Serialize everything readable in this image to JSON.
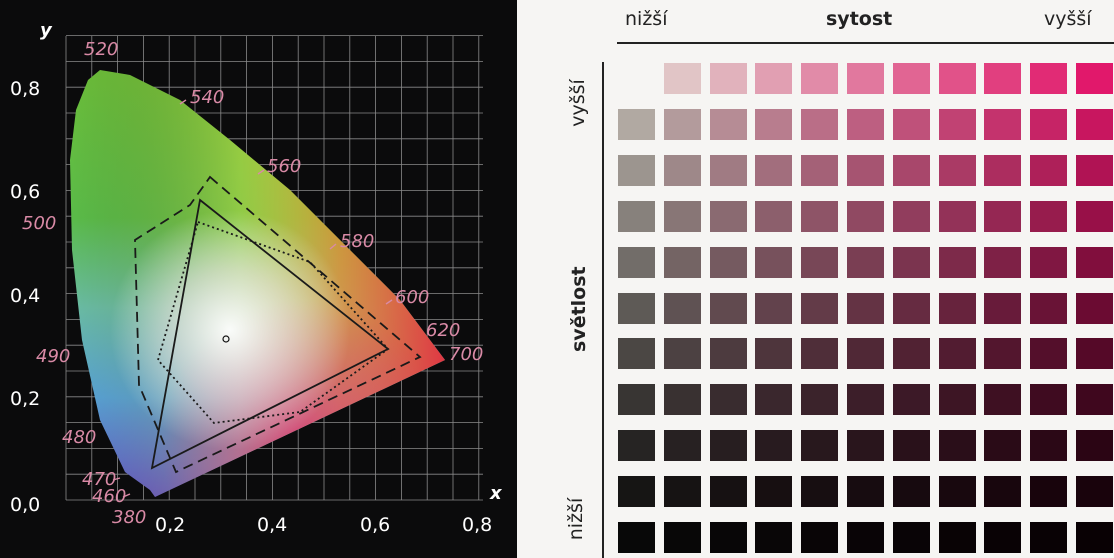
{
  "cie": {
    "axis_x_label": "x",
    "axis_y_label": "y",
    "x_ticks": [
      "0,2",
      "0,4",
      "0,6",
      "0,8"
    ],
    "y_ticks": [
      "0,0",
      "0,2",
      "0,4",
      "0,6",
      "0,8"
    ],
    "wavelengths": [
      "520",
      "540",
      "560",
      "580",
      "600",
      "620",
      "700",
      "500",
      "490",
      "480",
      "470",
      "460",
      "380"
    ],
    "colors": {
      "background": "#0b0b0c",
      "grid": "#8a8a8a",
      "axis_text": "#ffffff",
      "wavelength_text": "#d98aa6"
    }
  },
  "swatches": {
    "top_low": "nižší",
    "top_title": "sytost",
    "top_high": "vyšší",
    "side_high": "vyšší",
    "side_title": "světlost",
    "side_low": "nižší",
    "rows": 11,
    "columns": 11,
    "colors": {
      "hue": "#e8196e",
      "panel_background": "#f6f5f3",
      "text": "#222222"
    }
  }
}
